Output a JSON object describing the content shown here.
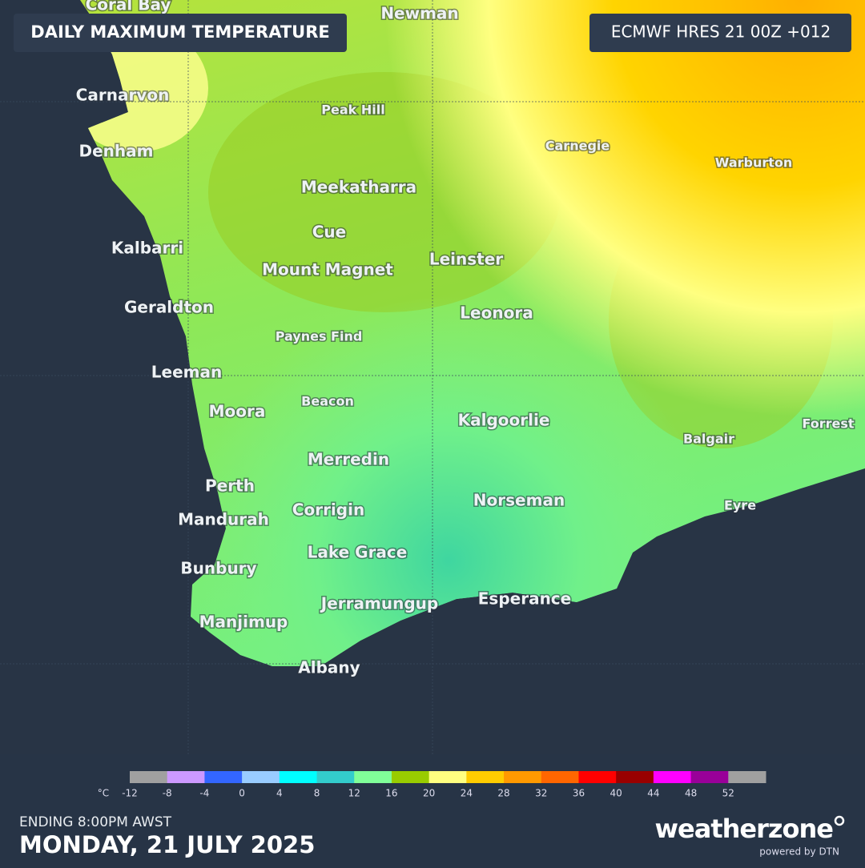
{
  "header": {
    "title": "DAILY MAXIMUM TEMPERATURE",
    "model": "ECMWF HRES 21 00Z +012"
  },
  "places": [
    "Coral Bay",
    "Newman",
    "Carnarvon",
    "Peak Hill",
    "Denham",
    "Carnegie",
    "Warburton",
    "Meekatharra",
    "Cue",
    "Kalbarri",
    "Mount Magnet",
    "Leinster",
    "Geraldton",
    "Leonora",
    "Paynes Find",
    "Leeman",
    "Beacon",
    "Moora",
    "Kalgoorlie",
    "Forrest",
    "Balgair",
    "Merredin",
    "Perth",
    "Norseman",
    "Eyre",
    "Corrigin",
    "Mandurah",
    "Lake Grace",
    "Bunbury",
    "Esperance",
    "Jerramungup",
    "Manjimup",
    "Albany"
  ],
  "legend": {
    "unit": "°C",
    "ticks": [
      -12,
      -8,
      -4,
      0,
      4,
      8,
      12,
      16,
      20,
      24,
      28,
      32,
      36,
      40,
      44,
      48,
      52
    ],
    "colors": [
      "#a0a0a0",
      "#cc99ff",
      "#3366ff",
      "#99ccff",
      "#00ffff",
      "#33cccc",
      "#80ff99",
      "#99cc00",
      "#ffff80",
      "#ffcc00",
      "#ff9900",
      "#ff6600",
      "#ff0000",
      "#990000",
      "#ff00ff",
      "#990099",
      "#a0a0a0"
    ]
  },
  "footer": {
    "period": "ENDING 8:00PM AWST",
    "date": "MONDAY, 21 JULY 2025",
    "brand": "weatherzone",
    "powered": "powered by DTN"
  }
}
